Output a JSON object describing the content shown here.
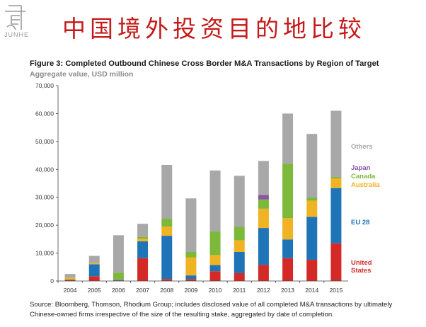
{
  "logo": {
    "text": "JUNHE"
  },
  "header": {
    "title": "中国境外投资目的地比较"
  },
  "figure": {
    "title": "Figure 3: Completed Outbound Chinese Cross Border M&A Transactions by Region of Target",
    "subtitle": "Aggregate value, USD million",
    "source": "Source: Bloomberg, Thomson, Rhodium Group; includes disclosed value of all completed M&A transactions by ultimately Chinese-owned firms irrespective of the size of the resulting stake, aggregated by date of completion."
  },
  "colors": {
    "united_states": "#d42a27",
    "eu28": "#1f74b8",
    "australia": "#f0b323",
    "canada": "#7cb83a",
    "japan": "#8a55a5",
    "others": "#a8a8a8"
  },
  "chart_data": {
    "type": "bar",
    "stacked": true,
    "title": "Figure 3: Completed Outbound Chinese Cross Border M&A Transactions by Region of Target",
    "ylabel": "Aggregate value, USD million",
    "ylim": [
      0,
      70000
    ],
    "yticks": [
      0,
      10000,
      20000,
      30000,
      40000,
      50000,
      60000,
      70000
    ],
    "ytick_labels": [
      "0",
      "10,000",
      "20,000",
      "30,000",
      "40,000",
      "50,000",
      "60,000",
      "70,000"
    ],
    "categories": [
      "2004",
      "2005",
      "2006",
      "2007",
      "2008",
      "2009",
      "2010",
      "2011",
      "2012",
      "2013",
      "2014",
      "2015"
    ],
    "series": [
      {
        "name": "United States",
        "key": "united_states",
        "values": [
          300,
          1700,
          200,
          8200,
          700,
          700,
          3500,
          2800,
          5800,
          8200,
          7600,
          13500
        ]
      },
      {
        "name": "EU 28",
        "key": "eu28",
        "values": [
          200,
          4300,
          300,
          6000,
          15500,
          1300,
          2200,
          7600,
          13200,
          6700,
          15400,
          19800
        ]
      },
      {
        "name": "Australia",
        "key": "australia",
        "values": [
          700,
          400,
          200,
          1000,
          3300,
          6500,
          3600,
          4200,
          6900,
          7600,
          5800,
          3500
        ]
      },
      {
        "name": "Canada",
        "key": "canada",
        "values": [
          0,
          0,
          2300,
          600,
          2800,
          1900,
          8500,
          4800,
          3300,
          19500,
          1000,
          500
        ]
      },
      {
        "name": "Japan",
        "key": "japan",
        "values": [
          0,
          0,
          0,
          0,
          0,
          0,
          0,
          0,
          1600,
          0,
          0,
          0
        ]
      },
      {
        "name": "Others",
        "key": "others",
        "values": [
          1300,
          2600,
          13400,
          4700,
          19300,
          19200,
          21800,
          18300,
          12200,
          18000,
          22900,
          23700
        ]
      }
    ],
    "legend": [
      {
        "label": "Others",
        "key": "others"
      },
      {
        "label": "Japan",
        "key": "japan"
      },
      {
        "label": "Canada",
        "key": "canada"
      },
      {
        "label": "Australia",
        "key": "australia"
      },
      {
        "label": "EU 28",
        "key": "eu28"
      },
      {
        "label": "United States",
        "key": "united_states"
      }
    ]
  }
}
